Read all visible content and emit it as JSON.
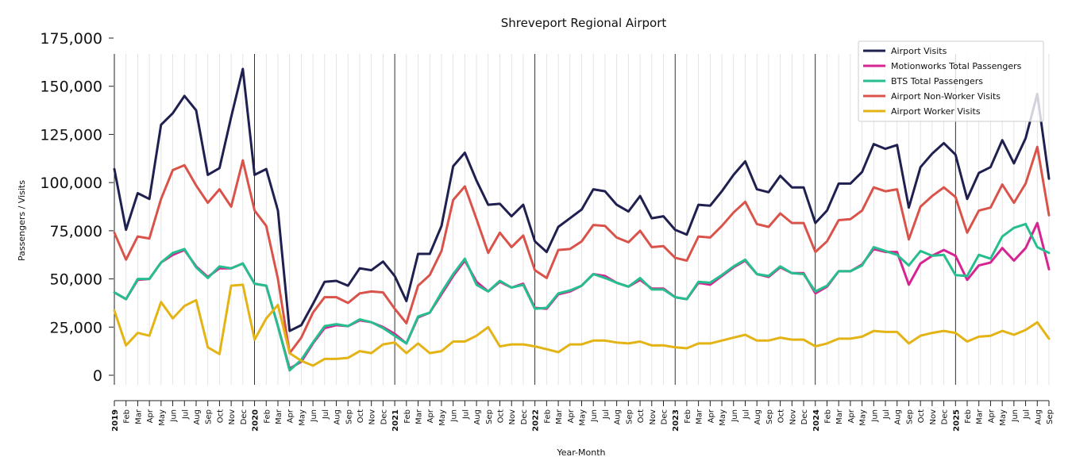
{
  "chart_data": {
    "type": "line",
    "title": "Shreveport Regional Airport",
    "xlabel": "Year-Month",
    "ylabel": "Passengers / Visits",
    "ylim": [
      0,
      175000
    ],
    "yticks": [
      0,
      25000,
      50000,
      75000,
      100000,
      125000,
      150000,
      175000
    ],
    "ytick_labels": [
      "0",
      "25,000",
      "50,000",
      "75,000",
      "100,000",
      "125,000",
      "150,000",
      "175,000"
    ],
    "legend_position": "top-right",
    "x_start": "2019-01",
    "x_end": "2025-09",
    "month_labels": [
      "Feb",
      "Mar",
      "Apr",
      "May",
      "Jun",
      "Jul",
      "Aug",
      "Sep",
      "Oct",
      "Nov",
      "Dec"
    ],
    "years": [
      "2019",
      "2020",
      "2021",
      "2022",
      "2023",
      "2024",
      "2025"
    ],
    "x": [
      "2019-01",
      "2019-02",
      "2019-03",
      "2019-04",
      "2019-05",
      "2019-06",
      "2019-07",
      "2019-08",
      "2019-09",
      "2019-10",
      "2019-11",
      "2019-12",
      "2020-01",
      "2020-02",
      "2020-03",
      "2020-04",
      "2020-05",
      "2020-06",
      "2020-07",
      "2020-08",
      "2020-09",
      "2020-10",
      "2020-11",
      "2020-12",
      "2021-01",
      "2021-02",
      "2021-03",
      "2021-04",
      "2021-05",
      "2021-06",
      "2021-07",
      "2021-08",
      "2021-09",
      "2021-10",
      "2021-11",
      "2021-12",
      "2022-01",
      "2022-02",
      "2022-03",
      "2022-04",
      "2022-05",
      "2022-06",
      "2022-07",
      "2022-08",
      "2022-09",
      "2022-10",
      "2022-11",
      "2022-12",
      "2023-01",
      "2023-02",
      "2023-03",
      "2023-04",
      "2023-05",
      "2023-06",
      "2023-07",
      "2023-08",
      "2023-09",
      "2023-10",
      "2023-11",
      "2023-12",
      "2024-01",
      "2024-02",
      "2024-03",
      "2024-04",
      "2024-05",
      "2024-06",
      "2024-07",
      "2024-08",
      "2024-09",
      "2024-10",
      "2024-11",
      "2024-12",
      "2025-01",
      "2025-02",
      "2025-03",
      "2025-04",
      "2025-05",
      "2025-06",
      "2025-07",
      "2025-08",
      "2025-09"
    ],
    "series": [
      {
        "name": "Airport Visits",
        "color": "#1f2050",
        "values": [
          107000,
          75500,
          94500,
          91500,
          130000,
          136000,
          145000,
          137500,
          104000,
          107500,
          134000,
          159000,
          104000,
          107000,
          85500,
          23000,
          26000,
          37000,
          48500,
          49000,
          46500,
          55500,
          54500,
          59000,
          51500,
          38500,
          63000,
          63000,
          77500,
          108500,
          115500,
          101000,
          88500,
          89000,
          82500,
          88500,
          69500,
          64000,
          77000,
          81500,
          86000,
          96500,
          95500,
          88500,
          85000,
          93000,
          81500,
          82500,
          75500,
          73000,
          88500,
          88000,
          95500,
          104000,
          111000,
          96500,
          95000,
          103500,
          97500,
          97500,
          79000,
          85500,
          99500,
          99500,
          105500,
          120000,
          117500,
          119500,
          87000,
          108000,
          115000,
          120500,
          114500,
          91500,
          105000,
          108000,
          122000,
          110000,
          123000,
          146000,
          102000
        ]
      },
      {
        "name": "Motionworks Total Passengers",
        "color": "#d62592",
        "values": [
          43000,
          39500,
          49500,
          50000,
          58500,
          62500,
          65000,
          56500,
          51000,
          55500,
          55500,
          58000,
          47500,
          46500,
          25500,
          3500,
          7000,
          16500,
          24500,
          26000,
          25500,
          28500,
          27500,
          25000,
          21500,
          16500,
          30000,
          32500,
          42000,
          51500,
          59500,
          48500,
          43500,
          48500,
          45500,
          47500,
          35000,
          34500,
          42000,
          43500,
          46500,
          52500,
          51500,
          48000,
          46000,
          49500,
          45000,
          45000,
          40500,
          39500,
          48000,
          47000,
          51500,
          56000,
          59500,
          52500,
          51000,
          56000,
          53000,
          53000,
          42500,
          46000,
          54000,
          54000,
          57500,
          65500,
          64000,
          64000,
          47000,
          58000,
          62000,
          65000,
          62000,
          49500,
          57000,
          58500,
          66000,
          59500,
          66000,
          79000,
          55000
        ]
      },
      {
        "name": "BTS Total Passengers",
        "color": "#26be8e",
        "values": [
          43000,
          39500,
          50000,
          50000,
          58500,
          63500,
          65500,
          56000,
          50500,
          56500,
          55500,
          58000,
          47500,
          46500,
          25500,
          2500,
          8000,
          17000,
          25500,
          26500,
          25500,
          29000,
          27500,
          24500,
          20500,
          16500,
          30500,
          32500,
          43000,
          52500,
          60500,
          47000,
          43500,
          49000,
          45500,
          47000,
          34500,
          35000,
          42500,
          44000,
          46500,
          52500,
          50500,
          48000,
          46000,
          50500,
          44500,
          44500,
          40500,
          39500,
          48500,
          48000,
          52000,
          56500,
          60000,
          52500,
          51500,
          56500,
          53000,
          52500,
          43500,
          46500,
          54000,
          54000,
          57000,
          66500,
          64500,
          62500,
          57000,
          64500,
          62000,
          62500,
          52000,
          51500,
          62500,
          60500,
          72000,
          76500,
          78500,
          66500,
          63500
        ]
      },
      {
        "name": "Airport Non-Worker Visits",
        "color": "#d9534b",
        "values": [
          74000,
          60000,
          72000,
          71000,
          91500,
          106500,
          109000,
          98500,
          89500,
          96500,
          87500,
          111500,
          85500,
          77500,
          50000,
          11500,
          19500,
          32500,
          40500,
          40500,
          37500,
          42500,
          43500,
          43000,
          34500,
          27000,
          46500,
          52000,
          64500,
          91000,
          98000,
          81000,
          63500,
          74000,
          66500,
          72500,
          54500,
          50500,
          65000,
          65500,
          69500,
          78000,
          77500,
          71500,
          69000,
          75000,
          66500,
          67000,
          61000,
          59500,
          72000,
          71500,
          77500,
          84500,
          90000,
          78500,
          77000,
          84000,
          79000,
          79000,
          64000,
          69500,
          80500,
          81000,
          85500,
          97500,
          95500,
          96500,
          70500,
          87500,
          93000,
          97500,
          92500,
          74000,
          85500,
          87000,
          99000,
          89500,
          99500,
          118500,
          83000
        ]
      },
      {
        "name": "Airport Worker Visits",
        "color": "#e4b315",
        "values": [
          33500,
          15500,
          22000,
          20500,
          38000,
          29500,
          36000,
          39000,
          14500,
          11000,
          46500,
          47000,
          18500,
          29500,
          36500,
          11500,
          7500,
          5000,
          8500,
          8500,
          9000,
          12500,
          11500,
          16000,
          17000,
          11500,
          16500,
          11500,
          12500,
          17500,
          17500,
          20500,
          25000,
          15000,
          16000,
          16000,
          15000,
          13500,
          12000,
          16000,
          16000,
          18000,
          18000,
          17000,
          16500,
          17500,
          15500,
          15500,
          14500,
          14000,
          16500,
          16500,
          18000,
          19500,
          21000,
          18000,
          18000,
          19500,
          18500,
          18500,
          15000,
          16500,
          19000,
          19000,
          20000,
          23000,
          22500,
          22500,
          16500,
          20500,
          22000,
          23000,
          22000,
          17500,
          20000,
          20500,
          23000,
          21000,
          23500,
          27500,
          19000
        ]
      }
    ]
  }
}
